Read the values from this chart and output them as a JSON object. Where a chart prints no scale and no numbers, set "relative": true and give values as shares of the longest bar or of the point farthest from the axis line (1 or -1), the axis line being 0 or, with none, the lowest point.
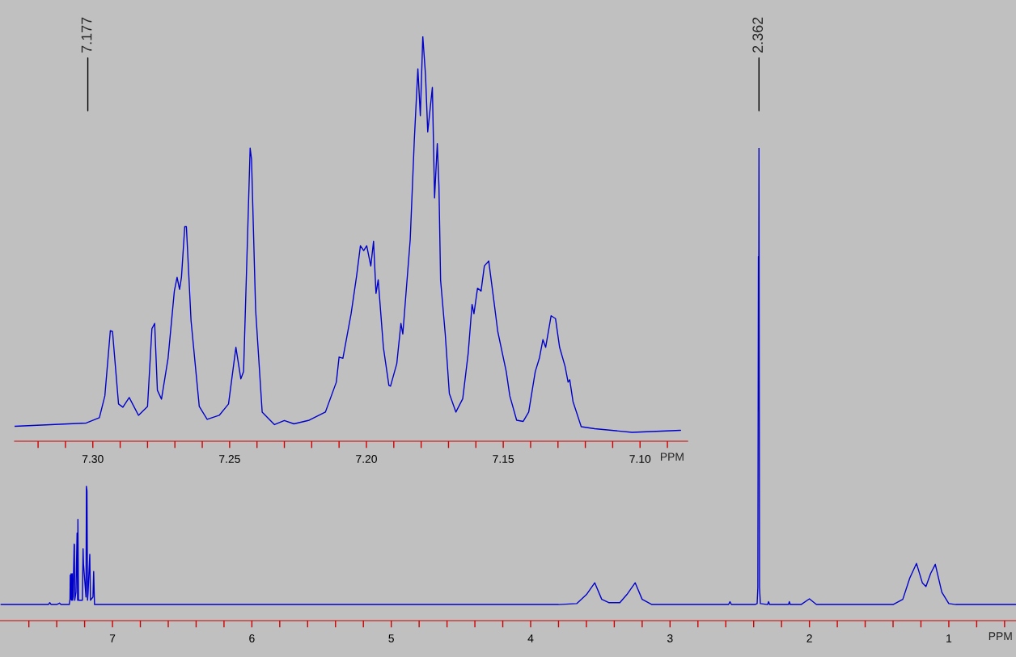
{
  "chart_data": [
    {
      "type": "line",
      "relative": true,
      "xlabel": "PPM",
      "xlim": [
        7.807,
        0.518
      ],
      "grid": false,
      "xticks": [
        7,
        {
          "value": 7.6,
          "label": null
        },
        {
          "value": 7.4,
          "label": null
        },
        {
          "value": 7.2,
          "label": null
        },
        {
          "value": 6.8,
          "label": null
        },
        {
          "value": 6.6,
          "label": null
        },
        {
          "value": 6.4,
          "label": null
        },
        {
          "value": 6.2,
          "label": null
        },
        6,
        {
          "value": 5.8,
          "label": null
        },
        {
          "value": 5.6,
          "label": null
        },
        {
          "value": 5.4,
          "label": null
        },
        {
          "value": 5.2,
          "label": null
        },
        5,
        {
          "value": 4.8,
          "label": null
        },
        {
          "value": 4.6,
          "label": null
        },
        {
          "value": 4.4,
          "label": null
        },
        {
          "value": 4.2,
          "label": null
        },
        4,
        {
          "value": 3.8,
          "label": null
        },
        {
          "value": 3.6,
          "label": null
        },
        {
          "value": 3.4,
          "label": null
        },
        {
          "value": 3.2,
          "label": null
        },
        3,
        {
          "value": 2.8,
          "label": null
        },
        {
          "value": 2.6,
          "label": null
        },
        {
          "value": 2.4,
          "label": null
        },
        {
          "value": 2.2,
          "label": null
        },
        2,
        {
          "value": 1.8,
          "label": null
        },
        {
          "value": 1.6,
          "label": null
        },
        {
          "value": 1.4,
          "label": null
        },
        {
          "value": 1.2,
          "label": null
        },
        1,
        {
          "value": 0.8,
          "label": null
        },
        {
          "value": 0.6,
          "label": null
        }
      ],
      "annotations": [
        {
          "text": "7.177",
          "x": 7.177
        },
        {
          "text": "2.362",
          "x": 2.362
        }
      ],
      "series": [
        {
          "color": "#0000cc",
          "x": [
            7.8,
            7.46,
            7.45,
            7.44,
            7.4,
            7.38,
            7.37,
            7.31,
            7.305,
            7.303,
            7.3,
            7.297,
            7.294,
            7.291,
            7.289,
            7.286,
            7.283,
            7.275,
            7.273,
            7.271,
            7.262,
            7.254,
            7.25,
            7.248,
            7.244,
            7.216,
            7.211,
            7.208,
            7.19,
            7.187,
            7.183,
            7.179,
            7.175,
            7.163,
            7.158,
            7.14,
            7.135,
            7.129,
            3.8,
            3.67,
            3.6,
            3.54,
            3.49,
            3.44,
            3.36,
            3.31,
            3.25,
            3.2,
            3.13,
            2.58,
            2.57,
            2.56,
            2.39,
            2.375,
            2.37,
            2.366,
            2.364,
            2.362,
            2.358,
            2.352,
            2.3,
            2.293,
            2.286,
            2.15,
            2.144,
            2.138,
            2.06,
            2.0,
            1.95,
            1.4,
            1.33,
            1.28,
            1.232,
            1.19,
            1.164,
            1.13,
            1.097,
            1.05,
            1.0,
            0.95,
            0.52
          ],
          "values": [
            0.034,
            0.034,
            0.038,
            0.034,
            0.034,
            0.037,
            0.034,
            0.034,
            0.045,
            0.096,
            0.045,
            0.099,
            0.043,
            0.06,
            0.099,
            0.043,
            0.05,
            0.162,
            0.16,
            0.043,
            0.06,
            0.185,
            0.043,
            0.214,
            0.043,
            0.043,
            0.152,
            0.12,
            0.05,
            0.284,
            0.274,
            0.043,
            0.06,
            0.14,
            0.043,
            0.05,
            0.104,
            0.034,
            0.034,
            0.036,
            0.055,
            0.08,
            0.045,
            0.038,
            0.038,
            0.055,
            0.08,
            0.045,
            0.034,
            0.034,
            0.04,
            0.034,
            0.034,
            0.036,
            0.07,
            0.77,
            0.6,
            1.0,
            0.07,
            0.036,
            0.034,
            0.04,
            0.034,
            0.034,
            0.04,
            0.034,
            0.034,
            0.046,
            0.034,
            0.034,
            0.045,
            0.09,
            0.121,
            0.08,
            0.072,
            0.1,
            0.119,
            0.06,
            0.036,
            0.034,
            0.034
          ]
        }
      ]
    },
    {
      "type": "line",
      "relative": true,
      "xlabel": "PPM",
      "xlim": [
        7.3286,
        7.0826
      ],
      "grid": false,
      "xticks": [
        {
          "value": 7.32,
          "label": null
        },
        {
          "value": 7.31,
          "label": null
        },
        {
          "value": 7.3,
          "label": "7.30"
        },
        {
          "value": 7.29,
          "label": null
        },
        {
          "value": 7.28,
          "label": null
        },
        {
          "value": 7.27,
          "label": null
        },
        {
          "value": 7.26,
          "label": null
        },
        7.25,
        {
          "value": 7.24,
          "label": null
        },
        {
          "value": 7.23,
          "label": null
        },
        {
          "value": 7.22,
          "label": null
        },
        {
          "value": 7.21,
          "label": null
        },
        {
          "value": 7.2,
          "label": "7.20"
        },
        {
          "value": 7.19,
          "label": null
        },
        {
          "value": 7.18,
          "label": null
        },
        {
          "value": 7.17,
          "label": null
        },
        {
          "value": 7.16,
          "label": null
        },
        7.15,
        {
          "value": 7.14,
          "label": null
        },
        {
          "value": 7.13,
          "label": null
        },
        {
          "value": 7.12,
          "label": null
        },
        {
          "value": 7.11,
          "label": null
        },
        {
          "value": 7.1,
          "label": "7.10"
        },
        {
          "value": 7.09,
          "label": null
        }
      ],
      "series": [
        {
          "color": "#0000cc",
          "x": [
            7.3285,
            7.3024,
            7.2976,
            7.2956,
            7.2936,
            7.2928,
            7.2906,
            7.289,
            7.2867,
            7.2833,
            7.28,
            7.2784,
            7.2774,
            7.2764,
            7.2749,
            7.2725,
            7.2702,
            7.2692,
            7.2683,
            7.2676,
            7.2664,
            7.2658,
            7.2641,
            7.2611,
            7.2582,
            7.2538,
            7.2504,
            7.2477,
            7.2459,
            7.2449,
            7.2425,
            7.242,
            7.2405,
            7.2381,
            7.2336,
            7.23,
            7.2265,
            7.2209,
            7.215,
            7.211,
            7.21,
            7.2086,
            7.2056,
            7.2036,
            7.2022,
            7.201,
            7.1999,
            7.1984,
            7.1974,
            7.1965,
            7.1957,
            7.1938,
            7.1918,
            7.1912,
            7.1889,
            7.1874,
            7.1867,
            7.184,
            7.1825,
            7.1812,
            7.1803,
            7.1794,
            7.1784,
            7.1776,
            7.1759,
            7.1751,
            7.1741,
            7.1735,
            7.1729,
            7.1712,
            7.1697,
            7.1673,
            7.1648,
            7.1628,
            7.1614,
            7.1607,
            7.1594,
            7.1581,
            7.1569,
            7.1553,
            7.1535,
            7.152,
            7.1489,
            7.1476,
            7.1451,
            7.1427,
            7.1407,
            7.1383,
            7.1368,
            7.1355,
            7.1345,
            7.1325,
            7.1309,
            7.1294,
            7.1274,
            7.1263,
            7.1257,
            7.1245,
            7.1215,
            7.1166,
            7.1029,
            7.0852
          ],
          "values": [
            0.037,
            0.045,
            0.058,
            0.112,
            0.273,
            0.271,
            0.092,
            0.084,
            0.108,
            0.064,
            0.086,
            0.278,
            0.291,
            0.126,
            0.104,
            0.205,
            0.371,
            0.405,
            0.375,
            0.405,
            0.53,
            0.53,
            0.298,
            0.086,
            0.054,
            0.064,
            0.092,
            0.232,
            0.154,
            0.172,
            0.724,
            0.697,
            0.325,
            0.072,
            0.041,
            0.051,
            0.043,
            0.052,
            0.072,
            0.146,
            0.208,
            0.205,
            0.315,
            0.408,
            0.483,
            0.471,
            0.483,
            0.433,
            0.494,
            0.365,
            0.399,
            0.232,
            0.138,
            0.136,
            0.192,
            0.291,
            0.265,
            0.498,
            0.744,
            0.92,
            0.804,
            1.0,
            0.904,
            0.764,
            0.874,
            0.601,
            0.735,
            0.631,
            0.398,
            0.265,
            0.118,
            0.072,
            0.105,
            0.218,
            0.338,
            0.315,
            0.378,
            0.371,
            0.433,
            0.445,
            0.351,
            0.271,
            0.172,
            0.112,
            0.052,
            0.049,
            0.072,
            0.172,
            0.205,
            0.251,
            0.232,
            0.31,
            0.303,
            0.232,
            0.185,
            0.146,
            0.152,
            0.098,
            0.036,
            0.031,
            0.022,
            0.027
          ]
        }
      ]
    }
  ]
}
